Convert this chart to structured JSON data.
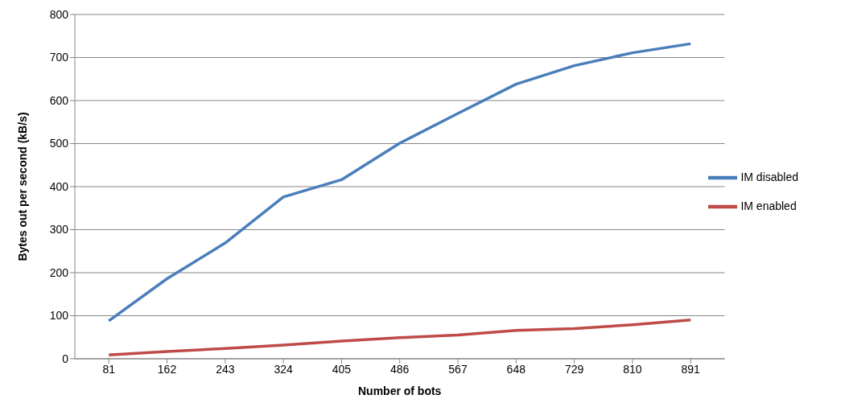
{
  "chart_data": {
    "type": "line",
    "xlabel": "Number of bots",
    "ylabel": "Bytes out per second (kB/s)",
    "categories": [
      "81",
      "162",
      "243",
      "324",
      "405",
      "486",
      "567",
      "648",
      "729",
      "810",
      "891"
    ],
    "series": [
      {
        "name": "IM disabled",
        "color": "#4a7ebb",
        "values": [
          88,
          186,
          269,
          376,
          416,
          501,
          570,
          638,
          681,
          711,
          732
        ]
      },
      {
        "name": "IM enabled",
        "color": "#be4b48",
        "values": [
          9,
          17,
          24,
          32,
          41,
          49,
          55,
          66,
          70,
          79,
          90
        ]
      }
    ],
    "ylim": [
      0,
      800
    ],
    "yticks": [
      0,
      100,
      200,
      300,
      400,
      500,
      600,
      700,
      800
    ],
    "grid": "y",
    "legend": "right",
    "marker": "none",
    "line_style": "solid"
  }
}
